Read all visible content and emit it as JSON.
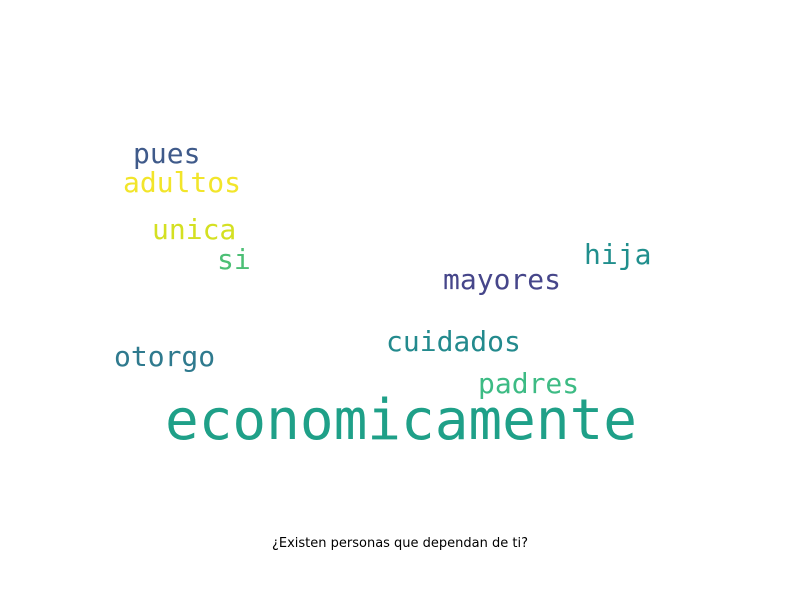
{
  "caption": "¿Existen personas que dependan de ti?",
  "words": [
    {
      "text": "pues",
      "color": "#3f5a8a"
    },
    {
      "text": "adultos",
      "color": "#f2e52a"
    },
    {
      "text": "unica",
      "color": "#d4e022"
    },
    {
      "text": "si",
      "color": "#4cbf75"
    },
    {
      "text": "hija",
      "color": "#218f8d"
    },
    {
      "text": "mayores",
      "color": "#46468a"
    },
    {
      "text": "cuidados",
      "color": "#238a8d"
    },
    {
      "text": "otorgo",
      "color": "#2f7a8e"
    },
    {
      "text": "padres",
      "color": "#3dbb84"
    },
    {
      "text": "economicamente",
      "color": "#1fa088"
    }
  ]
}
